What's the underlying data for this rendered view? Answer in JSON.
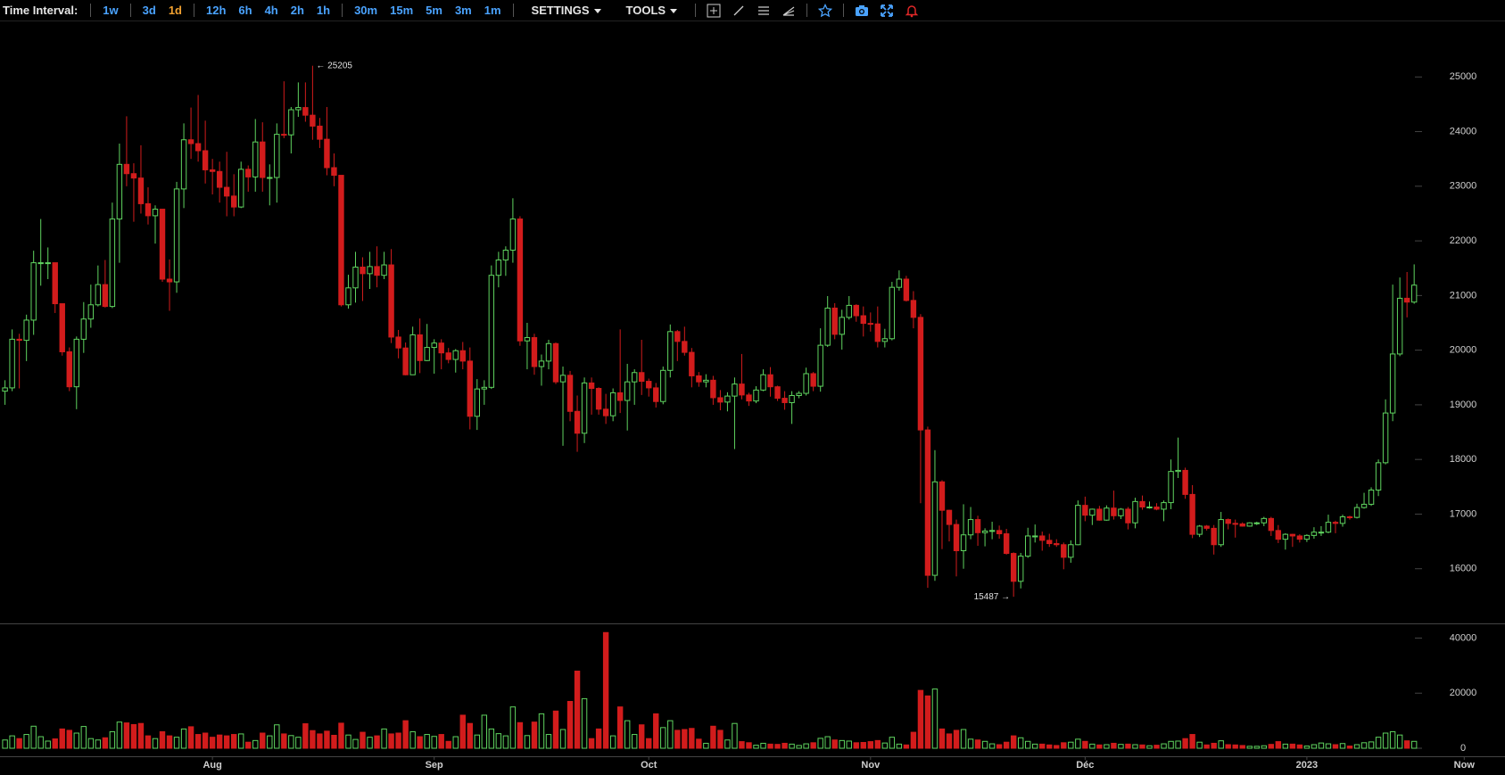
{
  "toolbar": {
    "label": "Time Interval:",
    "interval_groups": [
      [
        "1w"
      ],
      [
        "3d",
        "1d"
      ],
      [
        "12h",
        "6h",
        "4h",
        "2h",
        "1h"
      ],
      [
        "30m",
        "15m",
        "5m",
        "3m",
        "1m"
      ]
    ],
    "active_interval": [
      1,
      1
    ],
    "menus": [
      "SETTINGS",
      "TOOLS"
    ]
  },
  "chart_data": {
    "type": "candlestick",
    "up_color": "#5fd35f",
    "down_color": "#d21c1c",
    "max_label": "← 25205",
    "min_label": "15487 →",
    "xlim": [
      -0.7,
      209.7
    ],
    "xticks": [
      {
        "value": 29,
        "label": "Aug"
      },
      {
        "value": 60,
        "label": "Sep"
      },
      {
        "value": 90,
        "label": "Oct"
      },
      {
        "value": 121,
        "label": "Nov"
      },
      {
        "value": 151,
        "label": "Déc"
      },
      {
        "value": 182,
        "label": "2023"
      },
      {
        "value": 204,
        "label": "Now"
      }
    ],
    "ylim": [
      15000,
      26000
    ],
    "yticks": [
      16000,
      17000,
      18000,
      19000,
      20000,
      21000,
      22000,
      23000,
      24000,
      25000
    ],
    "volume_ylim": [
      0,
      45000
    ],
    "volume_yticks": [
      0,
      20000,
      40000
    ],
    "open": [
      19250,
      19310,
      20200,
      20180,
      20550,
      21600,
      21600,
      21600,
      20850,
      19970,
      19330,
      20200,
      20570,
      20830,
      21200,
      20800,
      22400,
      23400,
      23230,
      23150,
      22680,
      22460,
      22580,
      21300,
      21250,
      22950,
      23850,
      23780,
      23650,
      23300,
      23270,
      22980,
      22820,
      22620,
      23310,
      23170,
      23810,
      23160,
      23160,
      23950,
      23940,
      24400,
      24440,
      24300,
      24100,
      23860,
      23340,
      23200,
      20830,
      21140,
      21520,
      21400,
      21530,
      21370,
      21560,
      20240,
      20040,
      19550,
      20280,
      19810,
      20050,
      20130,
      19950,
      19830,
      19990,
      19800,
      18790,
      19290,
      19320,
      21370,
      21650,
      21830,
      22400,
      20170,
      20230,
      19700,
      19800,
      20120,
      19420,
      19540,
      18880,
      18480,
      19400,
      19300,
      18920,
      18800,
      19220,
      19080,
      19420,
      19590,
      19430,
      19310,
      19060,
      19630,
      20340,
      20160,
      19960,
      19530,
      19420,
      19450,
      19130,
      19050,
      19160,
      19380,
      19180,
      19070,
      19270,
      19550,
      19330,
      19120,
      19040,
      19170,
      19210,
      19570,
      19340,
      20090,
      20770,
      20290,
      20600,
      20820,
      20630,
      20490,
      20480,
      20160,
      20210,
      21150,
      21300,
      20910,
      20600,
      18540,
      15880,
      17590,
      17070,
      16810,
      16330,
      16620,
      16900,
      16660,
      16690,
      16700,
      16640,
      16280,
      15770,
      16230,
      16600,
      16600,
      16520,
      16460,
      16440,
      16210,
      16440,
      17160,
      16980,
      17090,
      16890,
      17110,
      16970,
      17090,
      16840,
      17230,
      17130,
      17130,
      17090,
      17210,
      17780,
      17800,
      17360,
      16630,
      16780,
      16740,
      16440,
      16900,
      16830,
      16820,
      16780,
      16840,
      16840,
      16920,
      16700,
      16540,
      16630,
      16600,
      16540,
      16610,
      16670,
      16670,
      16850,
      16830,
      16950,
      16940,
      17120,
      17180,
      17440,
      17940,
      18850,
      19930,
      20950,
      20880
    ],
    "high": [
      19450,
      20380,
      20300,
      20650,
      21820,
      22400,
      21880,
      21600,
      20850,
      20050,
      20250,
      20880,
      21200,
      21550,
      21650,
      22700,
      23780,
      24280,
      23420,
      23750,
      22980,
      22650,
      22580,
      21660,
      23080,
      24150,
      24440,
      24670,
      24200,
      23500,
      23450,
      23630,
      23220,
      23450,
      23380,
      24230,
      24170,
      23400,
      24150,
      24920,
      24450,
      24900,
      24900,
      25205,
      24250,
      24450,
      23600,
      23200,
      21380,
      21800,
      21700,
      21800,
      21900,
      21800,
      21850,
      20370,
      20140,
      20430,
      20580,
      20480,
      20200,
      20200,
      20040,
      20020,
      20150,
      20050,
      19470,
      19450,
      21550,
      21800,
      21900,
      22780,
      22450,
      20500,
      20300,
      19920,
      20190,
      20140,
      19700,
      19620,
      19170,
      19500,
      19500,
      19320,
      19200,
      19300,
      20380,
      19750,
      19650,
      20190,
      19480,
      19400,
      19700,
      20470,
      20370,
      20430,
      20040,
      19600,
      19560,
      19530,
      19270,
      19230,
      19500,
      19930,
      19220,
      19340,
      19650,
      19690,
      19350,
      19250,
      19250,
      19250,
      19680,
      19600,
      20400,
      20990,
      20860,
      20740,
      20990,
      20840,
      20800,
      20690,
      20800,
      20390,
      21250,
      21460,
      21360,
      21080,
      20660,
      18600,
      18170,
      17620,
      17080,
      16900,
      17180,
      17130,
      16970,
      16740,
      16860,
      16790,
      16730,
      16300,
      16290,
      16750,
      16810,
      16680,
      16640,
      16540,
      16480,
      16520,
      17250,
      17320,
      17100,
      17150,
      17160,
      17430,
      17110,
      17130,
      17300,
      17340,
      17230,
      17200,
      17250,
      18000,
      18400,
      17850,
      17530,
      16800,
      16800,
      16800,
      17040,
      16920,
      16900,
      16850,
      16850,
      16860,
      16950,
      16950,
      16800,
      16650,
      16640,
      16630,
      16630,
      16760,
      16780,
      16990,
      16880,
      16990,
      16970,
      17190,
      17390,
      17490,
      18000,
      19100,
      21200,
      21330,
      21430,
      21570
    ],
    "low": [
      19000,
      19250,
      19300,
      19800,
      20280,
      21180,
      21300,
      20680,
      19900,
      19250,
      18920,
      19950,
      20410,
      20800,
      20780,
      20770,
      21600,
      23000,
      22350,
      22500,
      22300,
      21950,
      21250,
      20720,
      21050,
      22600,
      23500,
      23450,
      23050,
      22850,
      22700,
      22450,
      22450,
      22600,
      22900,
      22900,
      22900,
      22650,
      22700,
      23880,
      23600,
      24270,
      24180,
      23850,
      23700,
      23200,
      23000,
      20800,
      20760,
      20870,
      20900,
      21120,
      21150,
      21300,
      20130,
      19850,
      19540,
      19550,
      19580,
      19800,
      19570,
      19650,
      19760,
      19590,
      19650,
      18550,
      18540,
      19000,
      19290,
      21150,
      21360,
      21600,
      20080,
      19650,
      19550,
      19350,
      19650,
      19380,
      18250,
      18700,
      18140,
      18300,
      18820,
      18820,
      18650,
      18700,
      18850,
      18530,
      19000,
      19180,
      19150,
      18950,
      19010,
      19500,
      19800,
      19900,
      19320,
      19330,
      19320,
      19000,
      18900,
      18880,
      18190,
      19100,
      18980,
      19030,
      19250,
      19150,
      19070,
      18910,
      18650,
      19120,
      19170,
      19250,
      19240,
      20060,
      20200,
      20010,
      20560,
      20520,
      20250,
      20340,
      20050,
      20050,
      20180,
      21090,
      20890,
      20400,
      17200,
      15650,
      15780,
      16360,
      16500,
      15860,
      16000,
      16540,
      16420,
      16410,
      16540,
      16550,
      16260,
      15487,
      15640,
      16200,
      16480,
      16330,
      16400,
      16400,
      15990,
      16110,
      16430,
      16870,
      16800,
      16880,
      16880,
      16900,
      16910,
      16720,
      16740,
      17080,
      17100,
      17070,
      16870,
      17090,
      17660,
      17280,
      16560,
      16580,
      16700,
      16260,
      16400,
      16720,
      16570,
      16770,
      16770,
      16800,
      16780,
      16600,
      16470,
      16350,
      16400,
      16480,
      16490,
      16550,
      16600,
      16650,
      16650,
      16770,
      16900,
      16920,
      17100,
      17150,
      17330,
      17910,
      18700,
      19890,
      20600,
      20850
    ],
    "close": [
      19310,
      20200,
      20180,
      20550,
      21600,
      21600,
      21600,
      20850,
      19970,
      19330,
      20200,
      20570,
      20830,
      21200,
      20800,
      22400,
      23400,
      23230,
      23150,
      22680,
      22460,
      22580,
      21300,
      21250,
      22950,
      23850,
      23780,
      23650,
      23300,
      23270,
      22980,
      22820,
      22620,
      23310,
      23170,
      23810,
      23160,
      23160,
      23950,
      23940,
      24400,
      24440,
      24300,
      24100,
      23860,
      23340,
      23200,
      20830,
      21140,
      21520,
      21400,
      21530,
      21370,
      21560,
      20240,
      20040,
      19550,
      20280,
      19810,
      20050,
      20130,
      19950,
      19830,
      19990,
      19800,
      18790,
      19290,
      19320,
      21370,
      21650,
      21830,
      22400,
      20170,
      20230,
      19700,
      19800,
      20120,
      19420,
      19540,
      18880,
      18480,
      19400,
      19300,
      18920,
      18800,
      19220,
      19080,
      19420,
      19590,
      19430,
      19310,
      19060,
      19630,
      20340,
      20160,
      19960,
      19530,
      19420,
      19450,
      19130,
      19050,
      19160,
      19380,
      19180,
      19070,
      19270,
      19550,
      19330,
      19120,
      19040,
      19170,
      19210,
      19570,
      19340,
      20090,
      20770,
      20290,
      20600,
      20820,
      20630,
      20490,
      20480,
      20160,
      20210,
      21150,
      21300,
      20910,
      20600,
      18540,
      15880,
      17590,
      17070,
      16810,
      16330,
      16620,
      16900,
      16660,
      16690,
      16700,
      16640,
      16280,
      15770,
      16230,
      16600,
      16600,
      16520,
      16460,
      16440,
      16210,
      16440,
      17160,
      16980,
      17090,
      16890,
      17110,
      16970,
      17090,
      16840,
      17230,
      17130,
      17130,
      17090,
      17210,
      17780,
      17800,
      17360,
      16630,
      16780,
      16740,
      16440,
      16900,
      16830,
      16820,
      16780,
      16840,
      16840,
      16920,
      16700,
      16540,
      16630,
      16600,
      16540,
      16610,
      16670,
      16670,
      16850,
      16830,
      16950,
      16940,
      17120,
      17180,
      17440,
      17940,
      18850,
      19930,
      20950,
      20880,
      21190
    ],
    "volume": [
      3000,
      4500,
      3500,
      5000,
      8000,
      4200,
      2600,
      3400,
      7000,
      6500,
      5500,
      7900,
      3500,
      3000,
      3800,
      6000,
      9500,
      9200,
      8600,
      9000,
      4500,
      3500,
      6000,
      4500,
      4000,
      7000,
      7800,
      5000,
      5500,
      4000,
      4800,
      4500,
      5000,
      5200,
      2200,
      2800,
      5500,
      4500,
      8500,
      5200,
      4600,
      4000,
      8900,
      6400,
      5200,
      6200,
      4700,
      9100,
      4800,
      3200,
      5800,
      4000,
      4500,
      7000,
      5200,
      5500,
      10000,
      6000,
      4200,
      5000,
      4300,
      5000,
      2500,
      4200,
      12000,
      9000,
      4800,
      12000,
      7000,
      5300,
      4500,
      15000,
      9300,
      4600,
      9500,
      12500,
      5000,
      13500,
      6800,
      17000,
      28000,
      18000,
      3500,
      7000,
      42000,
      4500,
      15000,
      10000,
      5000,
      8500,
      3500,
      12500,
      7500,
      10000,
      6500,
      6800,
      7200,
      3300,
      1800,
      8000,
      6500,
      3000,
      9000,
      2400,
      2000,
      1100,
      1800,
      1500,
      1400,
      1800,
      1500,
      1000,
      1600,
      2000,
      3600,
      4200,
      3000,
      2800,
      2600,
      2000,
      2100,
      2400,
      2800,
      1900,
      4000,
      1500,
      1200,
      5800,
      21000,
      19000,
      21500,
      7000,
      5200,
      6500,
      6800,
      3300,
      3000,
      2500,
      1600,
      1300,
      2200,
      4500,
      3800,
      2500,
      1500,
      1500,
      1200,
      1000,
      2000,
      2200,
      3300,
      2500,
      1500,
      1200,
      1300,
      1800,
      1400,
      1500,
      1300,
      1200,
      900,
      1100,
      1600,
      2500,
      2600,
      3500,
      5000,
      2200,
      1200,
      1800,
      2700,
      1300,
      1200,
      1000,
      700,
      700,
      900,
      1400,
      2400,
      1500,
      1500,
      1200,
      800,
      1300,
      1900,
      1600,
      1300,
      1700,
      800,
      1300,
      2000,
      2300,
      4000,
      5500,
      6000,
      4800,
      2700,
      2500
    ]
  }
}
